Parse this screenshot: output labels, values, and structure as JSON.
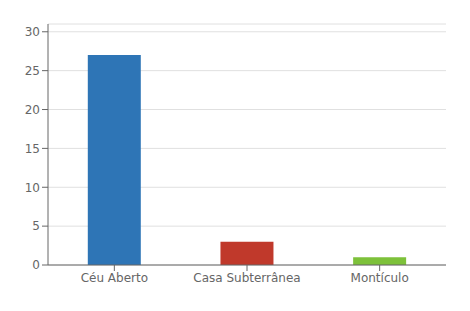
{
  "chart_data": {
    "type": "bar",
    "categories": [
      "Céu Aberto",
      "Casa Subterrânea",
      "Montículo"
    ],
    "values": [
      27,
      3,
      1
    ],
    "colors": [
      "#2E75B6",
      "#C0392B",
      "#7DC13A"
    ],
    "ylim": [
      0,
      31
    ],
    "yticks": [
      0,
      5,
      10,
      15,
      20,
      25,
      30
    ],
    "grid": true
  }
}
